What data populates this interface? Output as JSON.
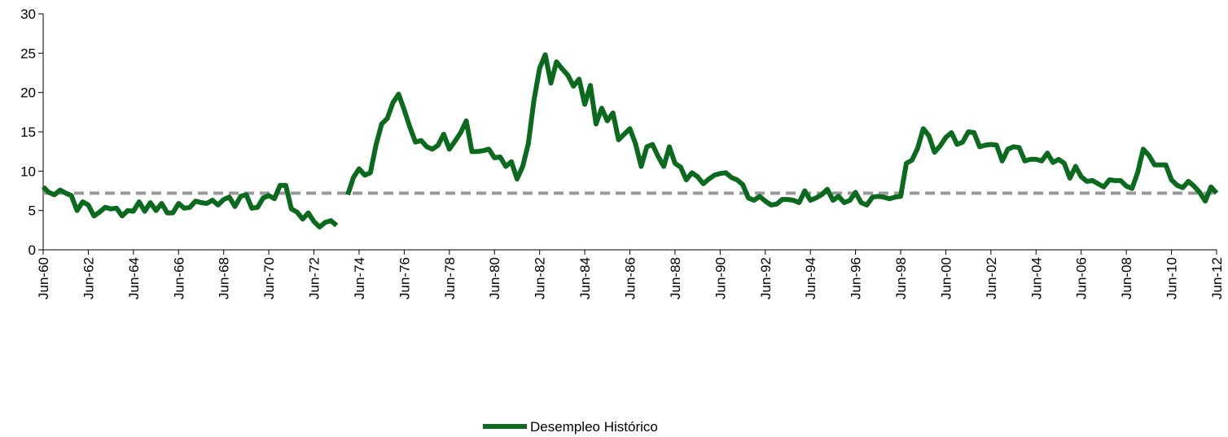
{
  "chart_data": {
    "type": "line",
    "categories": [
      "Jun-60",
      null,
      null,
      null,
      null,
      null,
      null,
      null,
      "Jun-62",
      null,
      null,
      null,
      null,
      null,
      null,
      null,
      "Jun-64",
      null,
      null,
      null,
      null,
      null,
      null,
      null,
      "Jun-66",
      null,
      null,
      null,
      null,
      null,
      null,
      null,
      "Jun-68",
      null,
      null,
      null,
      null,
      null,
      null,
      null,
      "Jun-70",
      null,
      null,
      null,
      null,
      null,
      null,
      null,
      "Jun-72",
      null,
      null,
      null,
      null,
      null,
      null,
      null,
      "Jun-74",
      null,
      null,
      null,
      null,
      null,
      null,
      null,
      "Jun-76",
      null,
      null,
      null,
      null,
      null,
      null,
      null,
      "Jun-78",
      null,
      null,
      null,
      null,
      null,
      null,
      null,
      "Jun-80",
      null,
      null,
      null,
      null,
      null,
      null,
      null,
      "Jun-82",
      null,
      null,
      null,
      null,
      null,
      null,
      null,
      "Jun-84",
      null,
      null,
      null,
      null,
      null,
      null,
      null,
      "Jun-86",
      null,
      null,
      null,
      null,
      null,
      null,
      null,
      "Jun-88",
      null,
      null,
      null,
      null,
      null,
      null,
      null,
      "Jun-90",
      null,
      null,
      null,
      null,
      null,
      null,
      null,
      "Jun-92",
      null,
      null,
      null,
      null,
      null,
      null,
      null,
      "Jun-94",
      null,
      null,
      null,
      null,
      null,
      null,
      null,
      "Jun-96",
      null,
      null,
      null,
      null,
      null,
      null,
      null,
      "Jun-98",
      null,
      null,
      null,
      null,
      null,
      null,
      null,
      "Jun-00",
      null,
      null,
      null,
      null,
      null,
      null,
      null,
      "Jun-02",
      null,
      null,
      null,
      null,
      null,
      null,
      null,
      "Jun-04",
      null,
      null,
      null,
      null,
      null,
      null,
      null,
      "Jun-06",
      null,
      null,
      null,
      null,
      null,
      null,
      null,
      "Jun-08",
      null,
      null,
      null,
      null,
      null,
      null,
      null,
      "Jun-10",
      null,
      null,
      null,
      null,
      null,
      null,
      null,
      "Jun-12"
    ],
    "series": [
      {
        "name": "Desempleo Histórico",
        "color": "#0b6a1e",
        "values": [
          8.0,
          7.3,
          7.0,
          7.6,
          7.2,
          6.9,
          5.0,
          6.1,
          5.7,
          4.3,
          4.8,
          5.4,
          5.2,
          5.3,
          4.3,
          5.0,
          4.9,
          6.1,
          4.9,
          6.0,
          5.0,
          5.9,
          4.7,
          4.7,
          5.9,
          5.3,
          5.4,
          6.2,
          6.0,
          5.9,
          6.3,
          5.7,
          6.4,
          6.7,
          5.5,
          6.8,
          7.0,
          5.3,
          5.4,
          6.6,
          6.9,
          6.5,
          8.2,
          8.2,
          5.2,
          4.8,
          3.9,
          4.7,
          3.6,
          2.9,
          3.5,
          3.7,
          3.1,
          null,
          7.0,
          9.2,
          10.3,
          9.5,
          9.8,
          13.3,
          16.0,
          16.7,
          18.7,
          19.8,
          17.8,
          15.6,
          13.7,
          13.9,
          13.1,
          12.8,
          13.3,
          14.7,
          12.8,
          13.8,
          14.9,
          16.4,
          12.5,
          12.5,
          12.6,
          12.8,
          11.7,
          11.8,
          10.6,
          11.2,
          9.0,
          10.6,
          13.5,
          19.0,
          23.1,
          24.8,
          21.2,
          23.9,
          23.0,
          22.2,
          20.8,
          21.7,
          18.5,
          20.9,
          16.0,
          18.0,
          16.4,
          17.4,
          14.0,
          14.7,
          15.4,
          13.5,
          10.6,
          13.1,
          13.4,
          11.9,
          10.6,
          13.1,
          11.0,
          10.5,
          8.9,
          9.8,
          9.3,
          8.4,
          9.0,
          9.5,
          9.7,
          9.8,
          9.2,
          8.9,
          8.3,
          6.6,
          6.3,
          6.8,
          6.2,
          5.7,
          5.8,
          6.4,
          6.4,
          6.3,
          6.0,
          7.5,
          6.3,
          6.6,
          7.0,
          7.7,
          6.3,
          6.8,
          6.0,
          6.3,
          7.3,
          6.0,
          5.7,
          6.7,
          6.8,
          6.7,
          6.5,
          6.7,
          6.8,
          11.0,
          11.4,
          12.9,
          15.4,
          14.5,
          12.4,
          13.2,
          14.3,
          14.9,
          13.4,
          13.7,
          15.0,
          14.9,
          13.1,
          13.3,
          13.4,
          13.3,
          11.3,
          12.8,
          13.1,
          13.0,
          11.3,
          11.5,
          11.5,
          11.3,
          12.3,
          11.1,
          11.5,
          11.0,
          9.1,
          10.6,
          9.3,
          8.7,
          8.8,
          8.4,
          8.0,
          8.9,
          8.8,
          8.8,
          8.1,
          7.8,
          9.8,
          12.8,
          12.0,
          10.8,
          10.8,
          10.8,
          8.9,
          8.2,
          7.9,
          8.7,
          8.1,
          7.3,
          6.2,
          8.0,
          7.2
        ]
      }
    ],
    "reference_line": {
      "value": 7.2,
      "color": "#999999"
    },
    "ylim": [
      0,
      30
    ],
    "yticks": [
      0,
      5,
      10,
      15,
      20,
      25,
      30
    ],
    "legend": "bottom"
  }
}
